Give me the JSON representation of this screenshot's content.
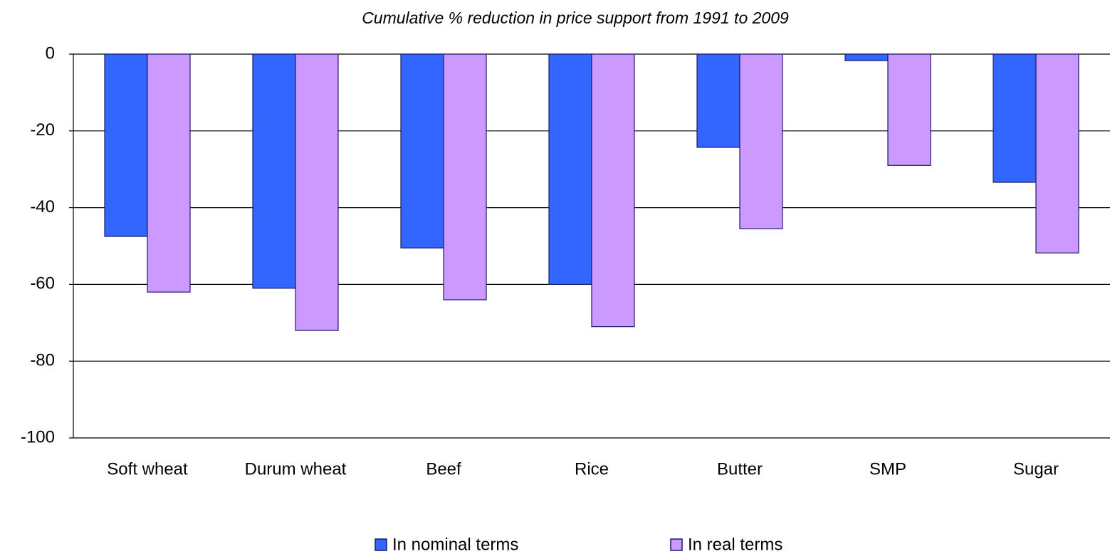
{
  "chart_data": {
    "type": "bar",
    "title": "Cumulative % reduction in price support from 1991 to 2009",
    "categories": [
      "Soft wheat",
      "Durum wheat",
      "Beef",
      "Rice",
      "Butter",
      "SMP",
      "Sugar"
    ],
    "series": [
      {
        "name": "In nominal terms",
        "color": "#3366ff",
        "values": [
          -47.5,
          -61,
          -50.5,
          -60,
          -24.3,
          -1.7,
          -33.4
        ]
      },
      {
        "name": "In real terms",
        "color": "#cc99ff",
        "values": [
          -62,
          -72,
          -64,
          -71,
          -45.5,
          -29,
          -51.8
        ]
      }
    ],
    "ylim": [
      -100,
      0
    ],
    "yticks": [
      0,
      -20,
      -40,
      -60,
      -80,
      -100
    ],
    "grid": true,
    "legend": "bottom"
  }
}
